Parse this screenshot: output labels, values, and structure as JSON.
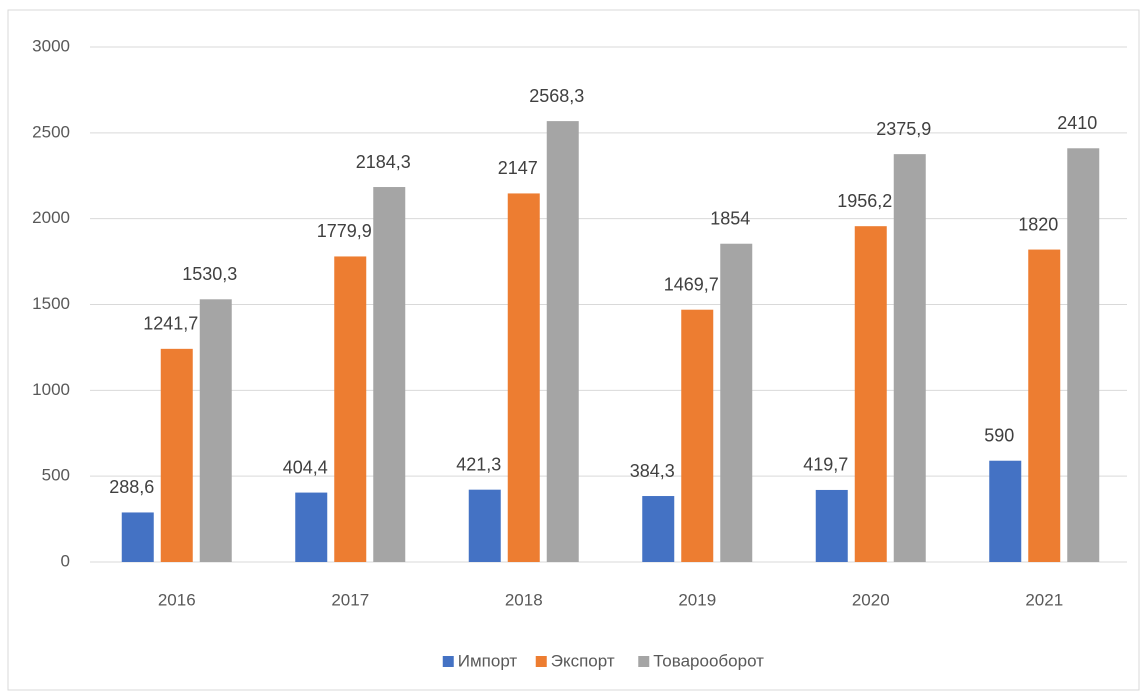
{
  "chart_data": {
    "type": "bar",
    "categories": [
      "2016",
      "2017",
      "2018",
      "2019",
      "2020",
      "2021"
    ],
    "series": [
      {
        "name": "Импорт",
        "color": "#4472c4",
        "values": [
          288.6,
          404.4,
          421.3,
          384.3,
          419.7,
          590
        ],
        "value_labels": [
          "288,6",
          "404,4",
          "421,3",
          "384,3",
          "419,7",
          "590"
        ]
      },
      {
        "name": "Экспорт",
        "color": "#ed7d31",
        "values": [
          1241.7,
          1779.9,
          2147,
          1469.7,
          1956.2,
          1820
        ],
        "value_labels": [
          "1241,7",
          "1779,9",
          "2147",
          "1469,7",
          "1956,2",
          "1820"
        ]
      },
      {
        "name": "Товарооборот",
        "color": "#a5a5a5",
        "values": [
          1530.3,
          2184.3,
          2568.3,
          1854,
          2375.9,
          2410
        ],
        "value_labels": [
          "1530,3",
          "2184,3",
          "2568,3",
          "1854",
          "2375,9",
          "2410"
        ]
      }
    ],
    "ylim": [
      0,
      3000
    ],
    "yticks": [
      0,
      500,
      1000,
      1500,
      2000,
      2500,
      3000
    ],
    "grid": true,
    "legend": "bottom"
  }
}
